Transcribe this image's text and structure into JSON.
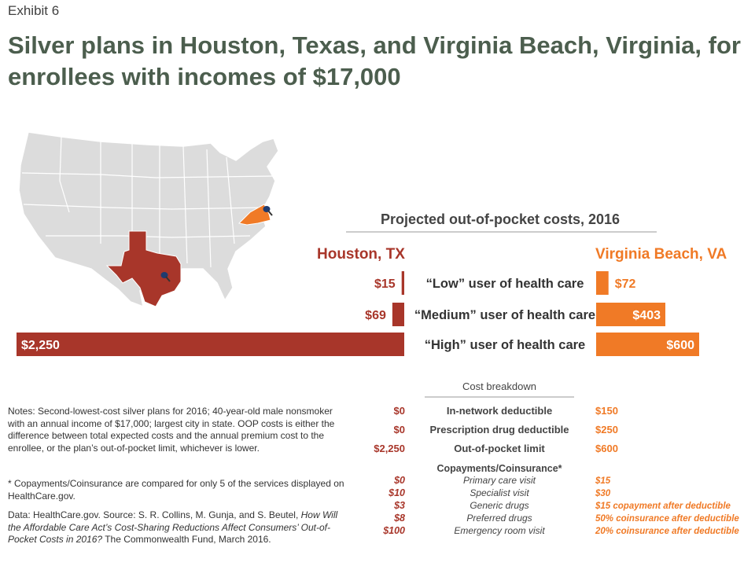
{
  "header": {
    "exhibit": "Exhibit 6",
    "title": "Silver plans in Houston, Texas, and Virginia Beach, Virginia, for enrollees with incomes of $17,000"
  },
  "map": {
    "highlight_states": [
      "Texas",
      "Virginia"
    ],
    "texas_color": "#a8362a",
    "virginia_color": "#f07a26",
    "base_color": "#dcdcdc",
    "markers": [
      "location-pin-icon",
      "location-pin-icon"
    ]
  },
  "chart_data": {
    "type": "bar",
    "title": "Projected out-of-pocket costs, 2016",
    "categories": [
      "“Low” user of health care",
      "“Medium” user of health care",
      "“High” user of health care"
    ],
    "series": [
      {
        "name": "Houston, TX",
        "values": [
          15,
          69,
          2250
        ],
        "labels": [
          "$15",
          "$69",
          "$2,250"
        ],
        "color": "#a8362a"
      },
      {
        "name": "Virginia Beach, VA",
        "values": [
          72,
          403,
          600
        ],
        "labels": [
          "$72",
          "$403",
          "$600"
        ],
        "color": "#f07a26"
      }
    ]
  },
  "breakdown": {
    "title": "Cost breakdown",
    "rows": [
      {
        "label": "In-network deductible",
        "houston": "$0",
        "virginia": "$150"
      },
      {
        "label": "Prescription drug deductible",
        "houston": "$0",
        "virginia": "$250"
      },
      {
        "label": "Out-of-pocket limit",
        "houston": "$2,250",
        "virginia": "$600"
      }
    ],
    "copay_header": "Copayments/Coinsurance*",
    "copay_rows": [
      {
        "label": "Primary care visit",
        "houston": "$0",
        "virginia": "$15"
      },
      {
        "label": "Specialist visit",
        "houston": "$10",
        "virginia": "$30"
      },
      {
        "label": "Generic drugs",
        "houston": "$3",
        "virginia": "$15 copayment after deductible"
      },
      {
        "label": "Preferred drugs",
        "houston": "$8",
        "virginia": "50% coinsurance after deductible"
      },
      {
        "label": "Emergency room visit",
        "houston": "$100",
        "virginia": "20% coinsurance after deductible"
      }
    ]
  },
  "notes": {
    "main": "Notes: Second-lowest-cost silver plans for 2016; 40-year-old male nonsmoker with an annual income of $17,000; largest city in state. OOP costs is either the difference between total expected costs and the annual premium cost to the enrollee, or the plan’s out-of-pocket limit, whichever is lower.",
    "asterisk": "* Copayments/Coinsurance are compared for only 5 of the services displayed on HealthCare.gov.",
    "data_prefix": "Data: HealthCare.gov. Source: S. R. Collins, M. Gunja, and S. Beutel, ",
    "data_title": "How Will the Affordable Care Act’s Cost-Sharing Reductions Affect Consumers’ Out-of-Pocket Costs in 2016?",
    "data_suffix": " The Commonwealth Fund, March 2016."
  }
}
